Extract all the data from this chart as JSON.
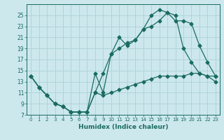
{
  "xlabel": "Humidex (Indice chaleur)",
  "bg_color": "#cce8ed",
  "grid_color": "#b0d4da",
  "line_color": "#1a6b60",
  "xlim": [
    -0.5,
    23.5
  ],
  "ylim": [
    7,
    27
  ],
  "xticks": [
    0,
    1,
    2,
    3,
    4,
    5,
    6,
    7,
    8,
    9,
    10,
    11,
    12,
    13,
    14,
    15,
    16,
    17,
    18,
    19,
    20,
    21,
    22,
    23
  ],
  "yticks": [
    7,
    9,
    11,
    13,
    15,
    17,
    19,
    21,
    23,
    25
  ],
  "series1_x": [
    0,
    1,
    2,
    3,
    4,
    5,
    6,
    7,
    8,
    9,
    10,
    11,
    12,
    13,
    14,
    15,
    16,
    17,
    18,
    19,
    20,
    21,
    22,
    23
  ],
  "series1_y": [
    14,
    12,
    10.5,
    9,
    8.5,
    7.5,
    7.5,
    7.5,
    14.5,
    11,
    18,
    19,
    20,
    20.5,
    22.5,
    23,
    24,
    25.5,
    24,
    24,
    23.5,
    19.5,
    16.5,
    14
  ],
  "series2_x": [
    0,
    1,
    2,
    3,
    4,
    5,
    6,
    7,
    8,
    9,
    10,
    11,
    12,
    13,
    14,
    15,
    16,
    17,
    18,
    19,
    20,
    21,
    22,
    23
  ],
  "series2_y": [
    14,
    12,
    10.5,
    9,
    8.5,
    7.5,
    7.5,
    7.5,
    11,
    10.5,
    11,
    11.5,
    12,
    12.5,
    13,
    13.5,
    14,
    14,
    14,
    14,
    14.5,
    14.5,
    14,
    14
  ],
  "series3_x": [
    0,
    1,
    2,
    3,
    4,
    5,
    6,
    7,
    8,
    9,
    10,
    11,
    12,
    13,
    14,
    15,
    16,
    17,
    18,
    19,
    20,
    21,
    22,
    23
  ],
  "series3_y": [
    14,
    12,
    10.5,
    9,
    8.5,
    7.5,
    7.5,
    7.5,
    11,
    14.5,
    18,
    21,
    19.5,
    20.5,
    22.5,
    25,
    26,
    25.5,
    25,
    19,
    16.5,
    14.5,
    14,
    13
  ]
}
